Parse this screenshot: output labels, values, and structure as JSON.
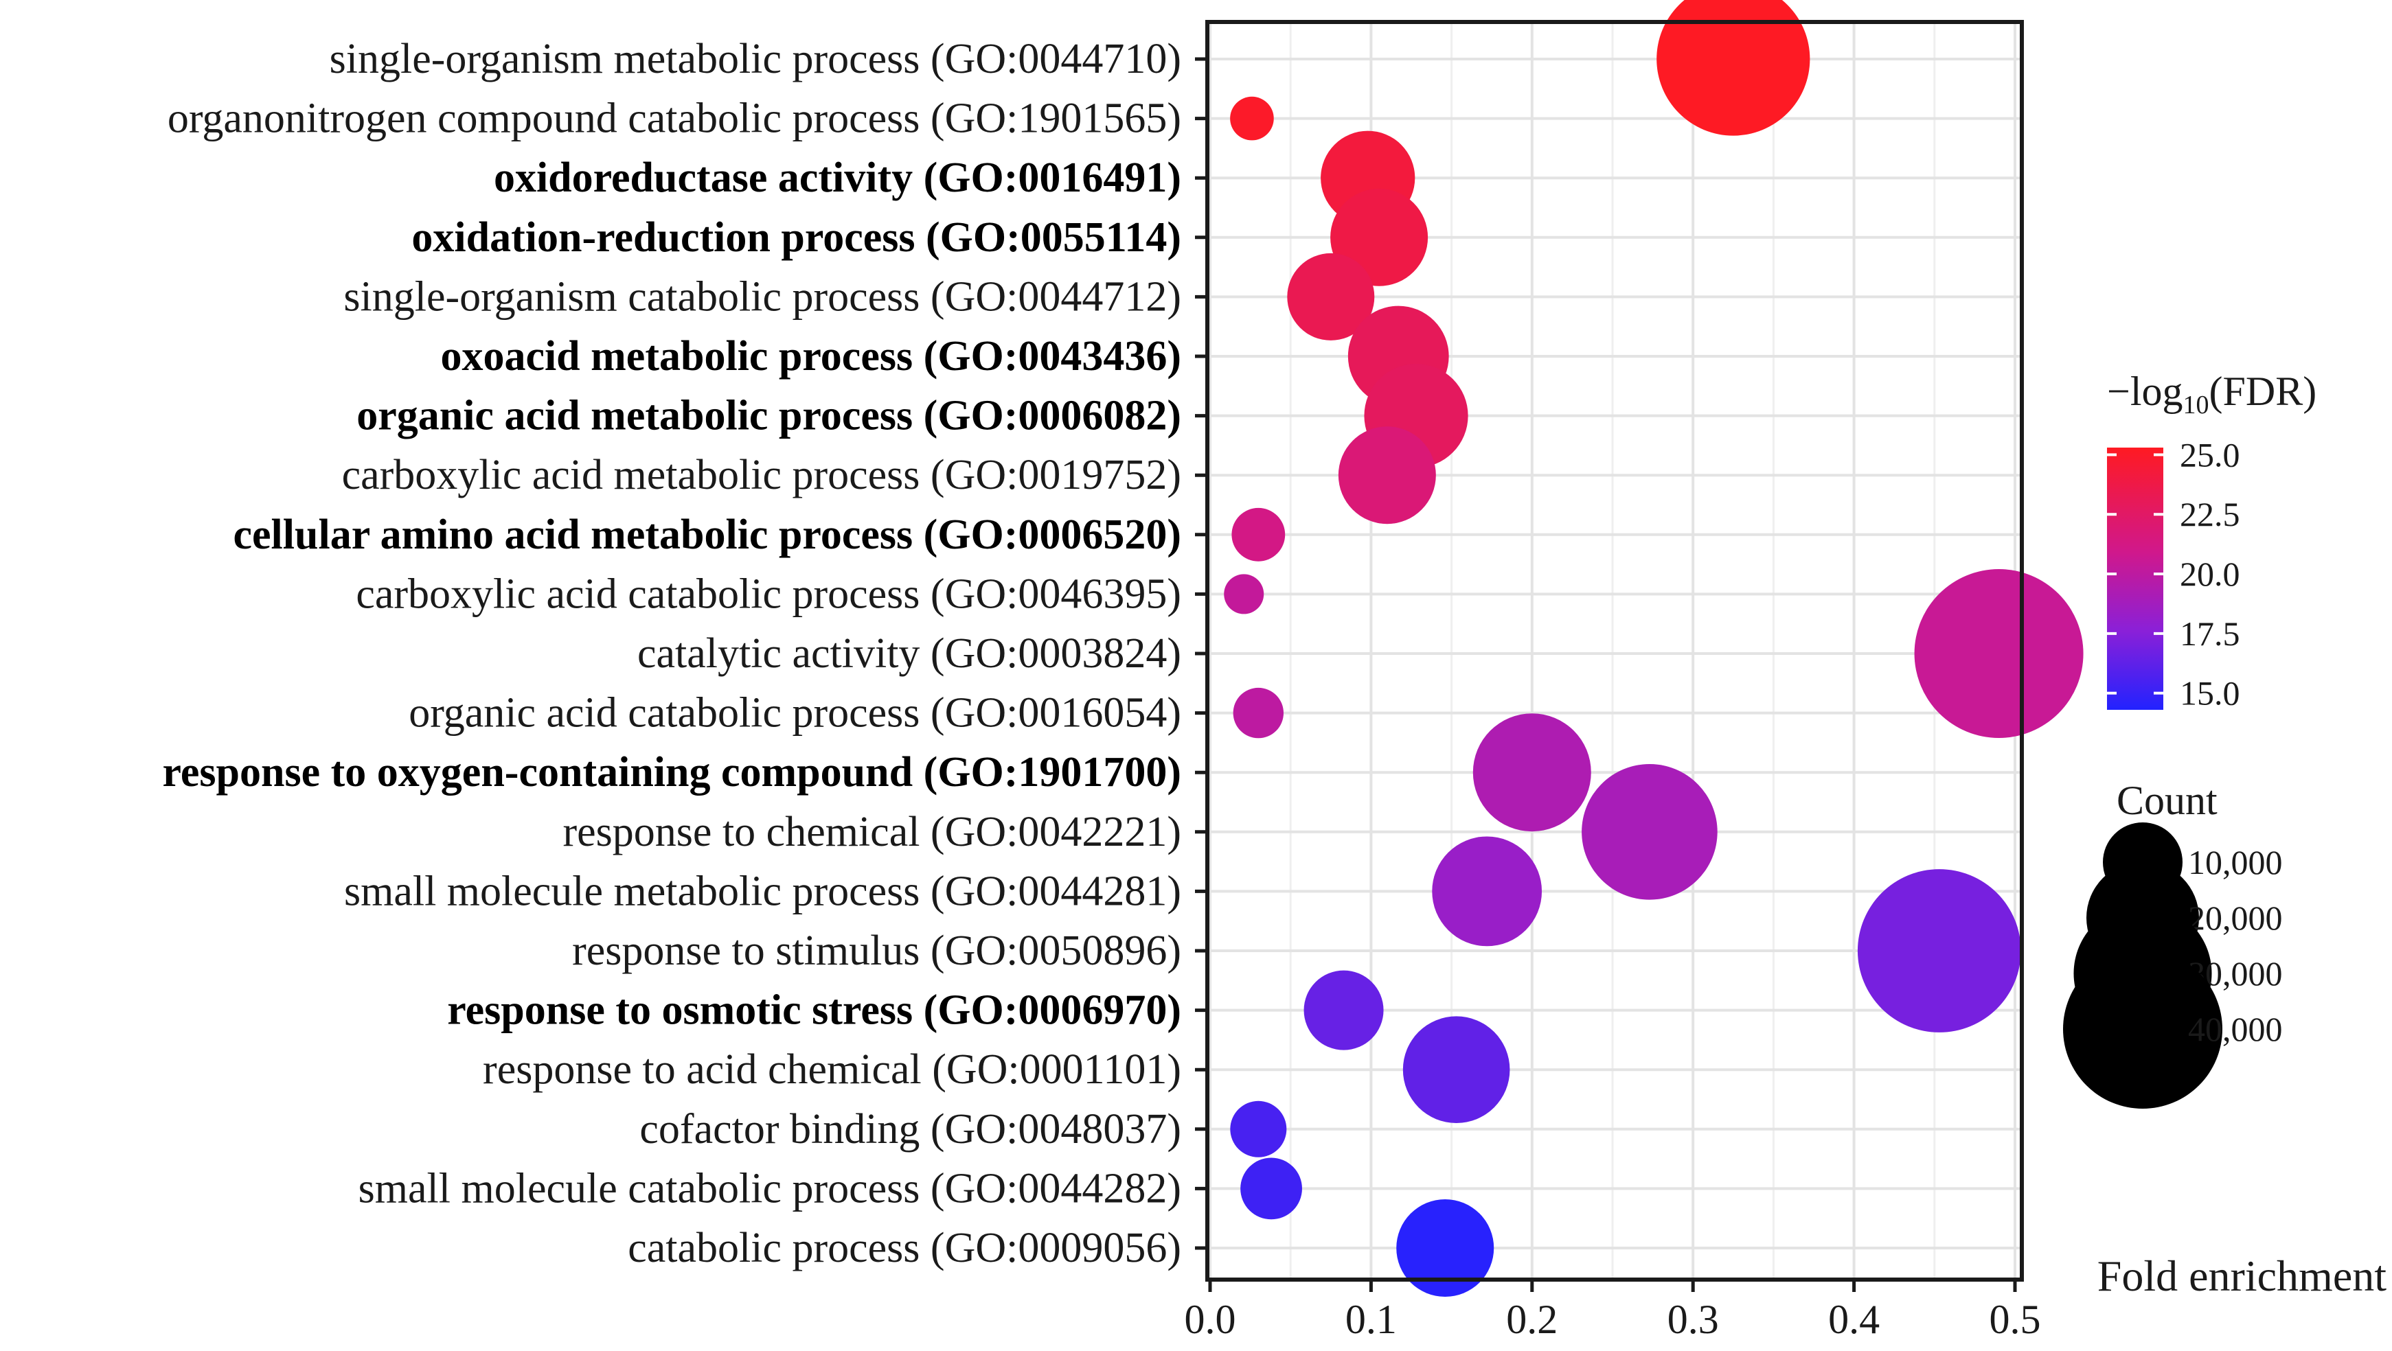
{
  "chart_data": {
    "type": "scatter",
    "subtype": "bubble",
    "xlabel": "Fold enrichment",
    "xlim": [
      0,
      0.5
    ],
    "x_ticks": [
      "0.0",
      "0.1",
      "0.2",
      "0.3",
      "0.4",
      "0.5"
    ],
    "x_tick_values": [
      0,
      0.1,
      0.2,
      0.3,
      0.4,
      0.5
    ],
    "grid": true,
    "terms": [
      {
        "label": "single-organism metabolic process (GO:0044710)",
        "bold": false,
        "x": 0.325,
        "count": 37000,
        "neg_log10_fdr": 25.2
      },
      {
        "label": "organonitrogen compound catabolic process (GO:1901565)",
        "bold": false,
        "x": 0.026,
        "count": 3000,
        "neg_log10_fdr": 25.0
      },
      {
        "label": "oxidoreductase activity (GO:0016491)",
        "bold": true,
        "x": 0.098,
        "count": 14000,
        "neg_log10_fdr": 24.2
      },
      {
        "label": "oxidation-reduction process (GO:0055114)",
        "bold": true,
        "x": 0.105,
        "count": 15000,
        "neg_log10_fdr": 23.8
      },
      {
        "label": "single-organism catabolic process (GO:0044712)",
        "bold": false,
        "x": 0.075,
        "count": 12000,
        "neg_log10_fdr": 23.3
      },
      {
        "label": "oxoacid metabolic process (GO:0043436)",
        "bold": true,
        "x": 0.117,
        "count": 16000,
        "neg_log10_fdr": 23.0
      },
      {
        "label": "organic acid metabolic process (GO:0006082)",
        "bold": true,
        "x": 0.128,
        "count": 17000,
        "neg_log10_fdr": 22.8
      },
      {
        "label": "carboxylic acid metabolic process (GO:0019752)",
        "bold": false,
        "x": 0.11,
        "count": 15000,
        "neg_log10_fdr": 21.8
      },
      {
        "label": "cellular amino acid metabolic process (GO:0006520)",
        "bold": true,
        "x": 0.03,
        "count": 4500,
        "neg_log10_fdr": 21.2
      },
      {
        "label": "carboxylic acid catabolic process (GO:0046395)",
        "bold": false,
        "x": 0.021,
        "count": 2500,
        "neg_log10_fdr": 20.3
      },
      {
        "label": "catalytic activity (GO:0003824)",
        "bold": false,
        "x": 0.49,
        "count": 45000,
        "neg_log10_fdr": 20.5
      },
      {
        "label": "organic acid catabolic process (GO:0016054)",
        "bold": false,
        "x": 0.03,
        "count": 4000,
        "neg_log10_fdr": 20.0
      },
      {
        "label": "response to oxygen-containing compound (GO:1901700)",
        "bold": true,
        "x": 0.2,
        "count": 22000,
        "neg_log10_fdr": 19.3
      },
      {
        "label": "response to chemical (GO:0042221)",
        "bold": false,
        "x": 0.273,
        "count": 29000,
        "neg_log10_fdr": 19.0
      },
      {
        "label": "small molecule metabolic process (GO:0044281)",
        "bold": false,
        "x": 0.172,
        "count": 19000,
        "neg_log10_fdr": 18.3
      },
      {
        "label": "response to stimulus (GO:0050896)",
        "bold": false,
        "x": 0.453,
        "count": 42000,
        "neg_log10_fdr": 17.0
      },
      {
        "label": "response to osmotic stress (GO:0006970)",
        "bold": true,
        "x": 0.083,
        "count": 10000,
        "neg_log10_fdr": 16.5
      },
      {
        "label": "response to acid chemical (GO:0001101)",
        "bold": false,
        "x": 0.153,
        "count": 18000,
        "neg_log10_fdr": 16.3
      },
      {
        "label": "cofactor binding (GO:0048037)",
        "bold": false,
        "x": 0.03,
        "count": 5000,
        "neg_log10_fdr": 15.5
      },
      {
        "label": "small molecule catabolic process (GO:0044282)",
        "bold": false,
        "x": 0.038,
        "count": 6000,
        "neg_log10_fdr": 15.2
      },
      {
        "label": "catabolic process (GO:0009056)",
        "bold": false,
        "x": 0.146,
        "count": 15000,
        "neg_log10_fdr": 14.5
      }
    ],
    "color_legend": {
      "title_prefix": "−log",
      "title_sub": "10",
      "title_suffix": "(FDR)",
      "ticks": [
        "25.0",
        "22.5",
        "20.0",
        "17.5",
        "15.0"
      ],
      "tick_values": [
        25.0,
        22.5,
        20.0,
        17.5,
        15.0
      ],
      "range": [
        14.3,
        25.3
      ],
      "colors": [
        "#3a1cf5",
        "#a020c8",
        "#d01890",
        "#ff1a2a"
      ]
    },
    "size_legend": {
      "title": "Count",
      "labels": [
        "10,000",
        "20,000",
        "30,000",
        "40,000"
      ],
      "values": [
        10000,
        20000,
        30000,
        40000
      ]
    }
  }
}
